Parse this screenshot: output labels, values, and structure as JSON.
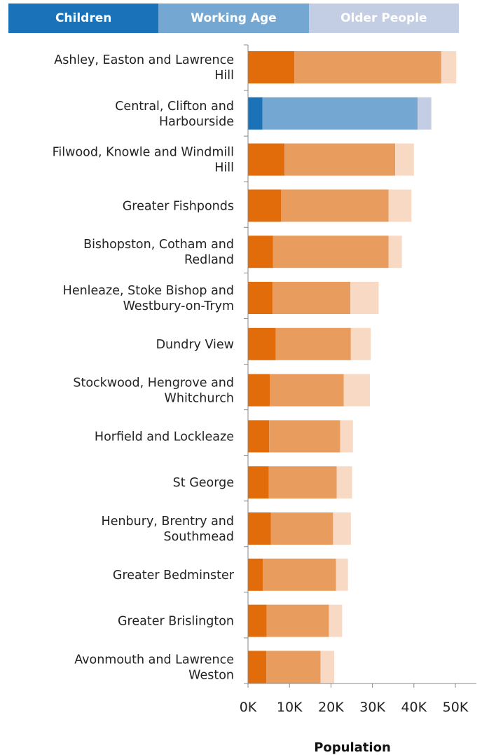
{
  "legend": [
    {
      "label": "Children",
      "color": "#1a72b8"
    },
    {
      "label": "Working Age",
      "color": "#74a8d2"
    },
    {
      "label": "Older People",
      "color": "#c3cde3"
    }
  ],
  "chart_data": {
    "type": "bar",
    "orientation": "horizontal",
    "stacked": true,
    "categories": [
      [
        "Ashley, Easton and Lawrence",
        "Hill"
      ],
      [
        "Central, Clifton and",
        "Harbourside"
      ],
      [
        "Filwood, Knowle and Windmill",
        "Hill"
      ],
      [
        "Greater Fishponds"
      ],
      [
        "Bishopston, Cotham and",
        "Redland"
      ],
      [
        "Henleaze, Stoke Bishop and",
        "Westbury-on-Trym"
      ],
      [
        "Dundry View"
      ],
      [
        "Stockwood, Hengrove and",
        "Whitchurch"
      ],
      [
        "Horfield and Lockleaze"
      ],
      [
        "St George"
      ],
      [
        "Henbury, Brentry and",
        "Southmead"
      ],
      [
        "Greater Bedminster"
      ],
      [
        "Greater Brislington"
      ],
      [
        "Avonmouth and Lawrence",
        "Weston"
      ]
    ],
    "series": [
      {
        "name": "Children",
        "values": [
          11200,
          3500,
          8800,
          8000,
          6000,
          5900,
          6700,
          5300,
          5100,
          5000,
          5500,
          3600,
          4500,
          4400
        ]
      },
      {
        "name": "Working Age",
        "values": [
          35400,
          37400,
          26700,
          25900,
          27900,
          18800,
          18100,
          17800,
          17100,
          16400,
          15000,
          17600,
          15000,
          13100
        ]
      },
      {
        "name": "Older People",
        "values": [
          3600,
          3300,
          4500,
          5500,
          3200,
          6800,
          4800,
          6300,
          3100,
          3700,
          4300,
          2900,
          3200,
          3300
        ]
      }
    ],
    "highlighted_index": 1,
    "highlight_colors": [
      "#1a72b8",
      "#74a8d2",
      "#c3cde3"
    ],
    "default_colors": [
      "#e36c0a",
      "#e89c5d",
      "#f8d9c4"
    ],
    "x_ticks": [
      0,
      10000,
      20000,
      30000,
      40000,
      50000
    ],
    "x_tick_labels": [
      "0K",
      "10K",
      "20K",
      "30K",
      "40K",
      "50K"
    ],
    "xlim": [
      0,
      55000
    ],
    "xlabel": "Population",
    "ylabel": ""
  }
}
